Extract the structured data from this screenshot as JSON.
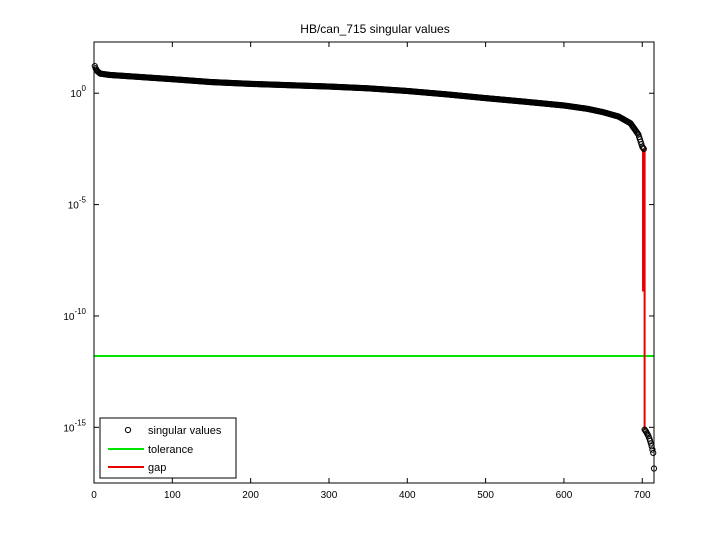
{
  "chart_data": {
    "type": "scatter",
    "title": "HB/can_715 singular values",
    "xlabel": "",
    "ylabel": "",
    "xlim": [
      0,
      715
    ],
    "ylim_log10": [
      -17.5,
      2.3
    ],
    "y_scale": "log",
    "grid": false,
    "legend_position": "bottom-left",
    "x_ticks": [
      "0",
      "100",
      "200",
      "300",
      "400",
      "500",
      "600",
      "700"
    ],
    "x_tick_values": [
      0,
      100,
      200,
      300,
      400,
      500,
      600,
      700
    ],
    "y_ticks": [
      {
        "base": "10",
        "exp": "0",
        "log10": 0
      },
      {
        "base": "10",
        "exp": "-5",
        "log10": -5
      },
      {
        "base": "10",
        "exp": "-10",
        "log10": -10
      },
      {
        "base": "10",
        "exp": "-15",
        "log10": -15
      }
    ],
    "series": [
      {
        "name": "singular values",
        "marker": "circle",
        "color": "#000000",
        "x_start": 1,
        "x_end": 715,
        "log10_profile": [
          [
            1,
            1.22
          ],
          [
            2,
            1.12
          ],
          [
            4,
            1.0
          ],
          [
            8,
            0.88
          ],
          [
            20,
            0.82
          ],
          [
            50,
            0.75
          ],
          [
            100,
            0.63
          ],
          [
            150,
            0.5
          ],
          [
            200,
            0.42
          ],
          [
            250,
            0.36
          ],
          [
            300,
            0.3
          ],
          [
            350,
            0.22
          ],
          [
            400,
            0.1
          ],
          [
            450,
            -0.05
          ],
          [
            500,
            -0.22
          ],
          [
            550,
            -0.38
          ],
          [
            600,
            -0.55
          ],
          [
            630,
            -0.7
          ],
          [
            650,
            -0.85
          ],
          [
            670,
            -1.05
          ],
          [
            685,
            -1.35
          ],
          [
            695,
            -1.85
          ],
          [
            700,
            -2.4
          ],
          [
            702,
            -2.5
          ],
          [
            703,
            -15.1
          ],
          [
            705,
            -15.2
          ],
          [
            708,
            -15.4
          ],
          [
            710,
            -15.6
          ],
          [
            712,
            -15.85
          ],
          [
            713,
            -16.0
          ],
          [
            714,
            -16.15
          ],
          [
            715,
            -16.85
          ]
        ]
      },
      {
        "name": "tolerance",
        "color": "#00e600",
        "log10_value": -11.8
      },
      {
        "name": "gap",
        "color": "#e60000",
        "segments": [
          {
            "x": 701,
            "log10_from": -2.5,
            "log10_to": -8.9
          },
          {
            "x": 703,
            "log10_from": -2.5,
            "log10_to": -15.1
          }
        ]
      }
    ]
  }
}
